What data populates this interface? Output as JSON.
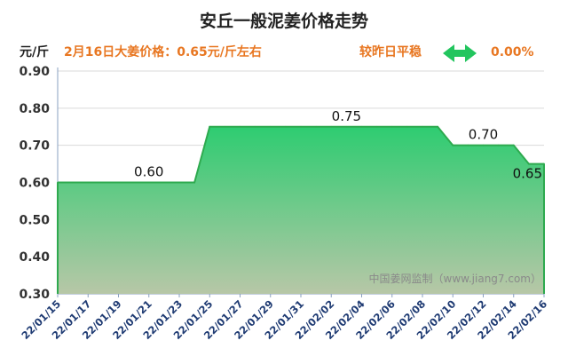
{
  "header": {
    "title": "安丘一般泥姜价格走势",
    "unit": "元/斤",
    "price_line": "2月16日大姜价格：0.65元/斤左右",
    "trend_text": "较昨日平稳",
    "change": "0.00%"
  },
  "watermark": "中国姜网监制（www.jiang7.com）",
  "colors": {
    "line": "#2eaa4f",
    "fill_top": "#2ecc71",
    "fill_bottom": "#b7c7a7",
    "accent": "#e87722",
    "arrow": "#22c55e"
  },
  "chart_data": {
    "type": "area",
    "title": "安丘一般泥姜价格走势",
    "ylabel": "元/斤",
    "ylim": [
      0.3,
      0.9
    ],
    "yticks": [
      "0.30",
      "0.40",
      "0.50",
      "0.60",
      "0.70",
      "0.80",
      "0.90"
    ],
    "xticks": [
      "22/01/15",
      "22/01/17",
      "22/01/19",
      "22/01/21",
      "22/01/23",
      "22/01/25",
      "22/01/27",
      "22/01/29",
      "22/01/31",
      "22/02/02",
      "22/02/04",
      "22/02/06",
      "22/02/08",
      "22/02/10",
      "22/02/12",
      "22/02/14",
      "22/02/16"
    ],
    "x": [
      "22/01/15",
      "22/01/16",
      "22/01/17",
      "22/01/18",
      "22/01/19",
      "22/01/20",
      "22/01/21",
      "22/01/22",
      "22/01/23",
      "22/01/24",
      "22/01/25",
      "22/01/26",
      "22/01/27",
      "22/01/28",
      "22/01/29",
      "22/01/30",
      "22/01/31",
      "22/02/01",
      "22/02/02",
      "22/02/03",
      "22/02/04",
      "22/02/05",
      "22/02/06",
      "22/02/07",
      "22/02/08",
      "22/02/09",
      "22/02/10",
      "22/02/11",
      "22/02/12",
      "22/02/13",
      "22/02/14",
      "22/02/15",
      "22/02/16"
    ],
    "values": [
      0.6,
      0.6,
      0.6,
      0.6,
      0.6,
      0.6,
      0.6,
      0.6,
      0.6,
      0.6,
      0.75,
      0.75,
      0.75,
      0.75,
      0.75,
      0.75,
      0.75,
      0.75,
      0.75,
      0.75,
      0.75,
      0.75,
      0.75,
      0.75,
      0.75,
      0.75,
      0.7,
      0.7,
      0.7,
      0.7,
      0.7,
      0.65,
      0.65
    ],
    "data_labels": [
      {
        "x": "22/01/21",
        "text": "0.60"
      },
      {
        "x": "22/02/03",
        "text": "0.75"
      },
      {
        "x": "22/02/12",
        "text": "0.70"
      },
      {
        "x": "22/02/16",
        "text": "0.65"
      }
    ],
    "grid": true
  }
}
